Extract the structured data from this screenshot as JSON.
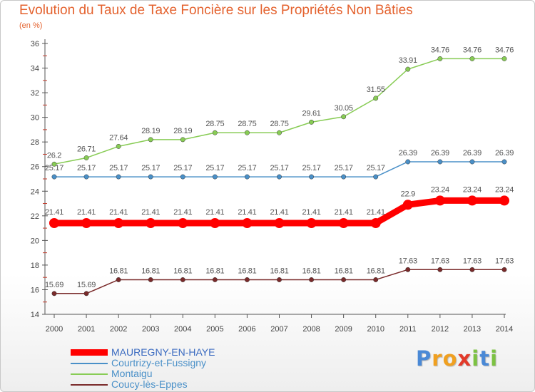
{
  "title": "Evolution du Taux de Taxe Foncière sur les Propriétés Non Bâties",
  "unit_label": "(en %)",
  "logo": {
    "letters": [
      "P",
      "r",
      "o",
      "x",
      "i",
      "t",
      "i"
    ],
    "colors": [
      "#4a89d6",
      "#f0a020",
      "#f0a020",
      "#e23a2a",
      "#7cc242",
      "#4a89d6",
      "#7cc242"
    ]
  },
  "chart_data": {
    "type": "line",
    "x": [
      "2000",
      "2001",
      "2002",
      "2003",
      "2004",
      "2005",
      "2006",
      "2007",
      "2008",
      "2009",
      "2010",
      "2011",
      "2012",
      "2013",
      "2014"
    ],
    "ylim": [
      14,
      36
    ],
    "yticks": [
      "14",
      "16",
      "18",
      "20",
      "22",
      "24",
      "26",
      "28",
      "30",
      "32",
      "34",
      "36"
    ],
    "grid": false,
    "legend_position": "bottom-left",
    "series": [
      {
        "name": "MAUREGNY-EN-HAYE",
        "color": "#ff0000",
        "highlight": true,
        "values": [
          21.41,
          21.41,
          21.41,
          21.41,
          21.41,
          21.41,
          21.41,
          21.41,
          21.41,
          21.41,
          21.41,
          22.9,
          23.24,
          23.24,
          23.24
        ],
        "labels": [
          "21.41",
          "21.41",
          "21.41",
          "21.41",
          "21.41",
          "21.41",
          "21.41",
          "21.41",
          "21.41",
          "21.41",
          "21.41",
          "22.9",
          "23.24",
          "23.24",
          "23.24"
        ]
      },
      {
        "name": "Courtrizy-et-Fussigny",
        "color": "#4a90c8",
        "highlight": false,
        "values": [
          25.17,
          25.17,
          25.17,
          25.17,
          25.17,
          25.17,
          25.17,
          25.17,
          25.17,
          25.17,
          25.17,
          26.39,
          26.39,
          26.39,
          26.39
        ],
        "labels": [
          "25.17",
          "25.17",
          "25.17",
          "25.17",
          "25.17",
          "25.17",
          "25.17",
          "25.17",
          "25.17",
          "25.17",
          "25.17",
          "26.39",
          "26.39",
          "26.39",
          "26.39"
        ]
      },
      {
        "name": "Montaigu",
        "color": "#88cc55",
        "highlight": false,
        "values": [
          26.2,
          26.71,
          27.64,
          28.19,
          28.19,
          28.75,
          28.75,
          28.75,
          29.61,
          30.05,
          31.55,
          33.91,
          34.76,
          34.76,
          34.76
        ],
        "labels": [
          "26.2",
          "26.71",
          "27.64",
          "28.19",
          "28.19",
          "28.75",
          "28.75",
          "28.75",
          "29.61",
          "30.05",
          "31.55",
          "33.91",
          "34.76",
          "34.76",
          "34.76"
        ]
      },
      {
        "name": "Coucy-lès-Eppes",
        "color": "#7a2a2a",
        "highlight": false,
        "values": [
          15.69,
          15.69,
          16.81,
          16.81,
          16.81,
          16.81,
          16.81,
          16.81,
          16.81,
          16.81,
          16.81,
          17.63,
          17.63,
          17.63,
          17.63
        ],
        "labels": [
          "15.69",
          "15.69",
          "16.81",
          "16.81",
          "16.81",
          "16.81",
          "16.81",
          "16.81",
          "16.81",
          "16.81",
          "16.81",
          "17.63",
          "17.63",
          "17.63",
          "17.63"
        ]
      }
    ]
  }
}
